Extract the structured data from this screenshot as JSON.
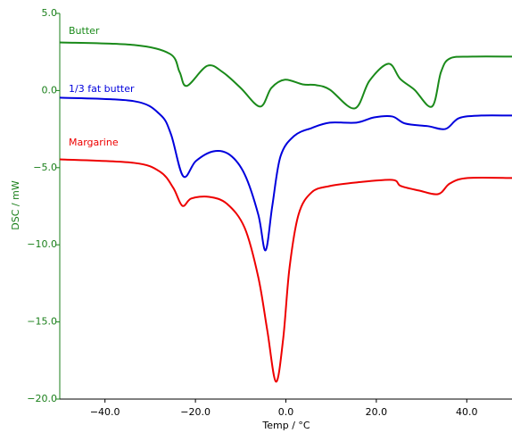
{
  "chart_data": {
    "type": "line",
    "xlabel": "Temp / °C",
    "ylabel": "DSC / mW",
    "xlim": [
      -50,
      50
    ],
    "ylim": [
      -20,
      5
    ],
    "xticks": [
      {
        "value": -40,
        "label": "−40.0"
      },
      {
        "value": -20,
        "label": "−20.0"
      },
      {
        "value": 0,
        "label": "0.0"
      },
      {
        "value": 20,
        "label": "20.0"
      },
      {
        "value": 40,
        "label": "40.0"
      }
    ],
    "yticks": [
      {
        "value": 5,
        "label": "5.0"
      },
      {
        "value": 0,
        "label": "0.0"
      },
      {
        "value": -5,
        "label": "−5.0"
      },
      {
        "value": -10,
        "label": "−10.0"
      },
      {
        "value": -15,
        "label": "−15.0"
      },
      {
        "value": -20,
        "label": "−20.0"
      }
    ],
    "yaxis_color": "#1a7f1a",
    "series": [
      {
        "name": "Butter",
        "color": "#1a8a1a",
        "x": [
          -50,
          -33.6,
          -25.6,
          -23.5,
          -21.9,
          -17.4,
          -14,
          -10,
          -5.7,
          -3.2,
          -0.2,
          3.7,
          6.7,
          9.7,
          15.2,
          18.5,
          22.7,
          25.3,
          28.4,
          32.3,
          34.3,
          36.3,
          41.3,
          50
        ],
        "values": [
          3.12,
          2.95,
          2.37,
          1.2,
          0.3,
          1.6,
          1.2,
          0.17,
          -1.04,
          0.17,
          0.7,
          0.4,
          0.35,
          0.06,
          -1.16,
          0.64,
          1.74,
          0.75,
          0.06,
          -1.04,
          1.2,
          2.08,
          2.2,
          2.2
        ]
      },
      {
        "name": "1/3 fat butter",
        "color": "#0000dd",
        "x": [
          -50,
          -33.6,
          -27.8,
          -25.4,
          -22.7,
          -19.9,
          -16,
          -12.4,
          -9.1,
          -6.1,
          -4.5,
          -3,
          -1.2,
          1.8,
          5.7,
          9.7,
          15.6,
          19.5,
          23.5,
          26.4,
          31.4,
          35.3,
          38.3,
          43.2,
          50
        ],
        "values": [
          -0.46,
          -0.69,
          -1.56,
          -2.84,
          -5.56,
          -4.57,
          -3.94,
          -4.17,
          -5.44,
          -8.04,
          -10.36,
          -7.47,
          -4.28,
          -2.95,
          -2.43,
          -2.08,
          -2.08,
          -1.74,
          -1.68,
          -2.14,
          -2.31,
          -2.49,
          -1.79,
          -1.62,
          -1.62
        ]
      },
      {
        "name": "Margarine",
        "color": "#ee0000",
        "x": [
          -50,
          -33.6,
          -27.8,
          -24.9,
          -22.9,
          -20.9,
          -17,
          -13,
          -9.1,
          -6.1,
          -4.1,
          -2.2,
          -0.6,
          0.8,
          2.8,
          5.7,
          9.7,
          15.6,
          23.5,
          25.4,
          29.4,
          33.7,
          36.3,
          40.2,
          50
        ],
        "values": [
          -4.46,
          -4.69,
          -5.27,
          -6.31,
          -7.47,
          -7.0,
          -6.89,
          -7.35,
          -8.91,
          -12.1,
          -15.57,
          -18.87,
          -16.1,
          -11.5,
          -8.04,
          -6.6,
          -6.19,
          -5.96,
          -5.79,
          -6.19,
          -6.48,
          -6.71,
          -6.02,
          -5.67,
          -5.67
        ]
      }
    ]
  }
}
